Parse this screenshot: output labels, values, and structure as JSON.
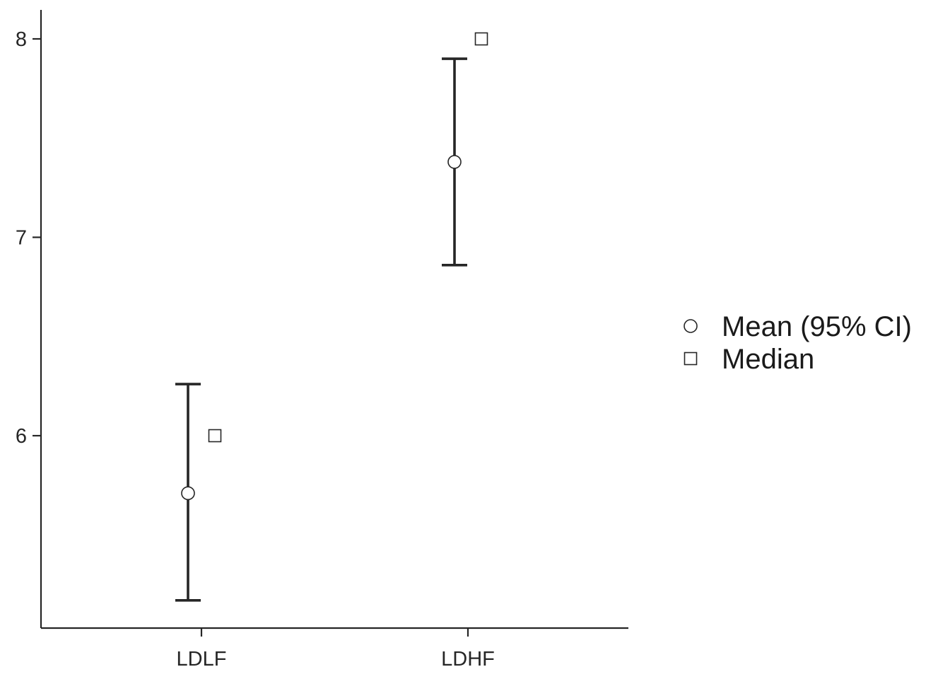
{
  "chart_data": {
    "type": "scatter",
    "title": "",
    "xlabel": "",
    "ylabel": "",
    "categories": [
      "LDLF",
      "LDHF"
    ],
    "yticks": [
      6,
      7,
      8
    ],
    "ylim": [
      5.03,
      8.14
    ],
    "grid": false,
    "legend_position": "right",
    "series": [
      {
        "name": "Mean (95% CI)",
        "marker": "circle",
        "values": [
          5.71,
          7.38
        ],
        "ci_lower": [
          5.17,
          6.86
        ],
        "ci_upper": [
          6.26,
          7.9
        ]
      },
      {
        "name": "Median",
        "marker": "square",
        "values": [
          6.0,
          8.0
        ]
      }
    ]
  }
}
